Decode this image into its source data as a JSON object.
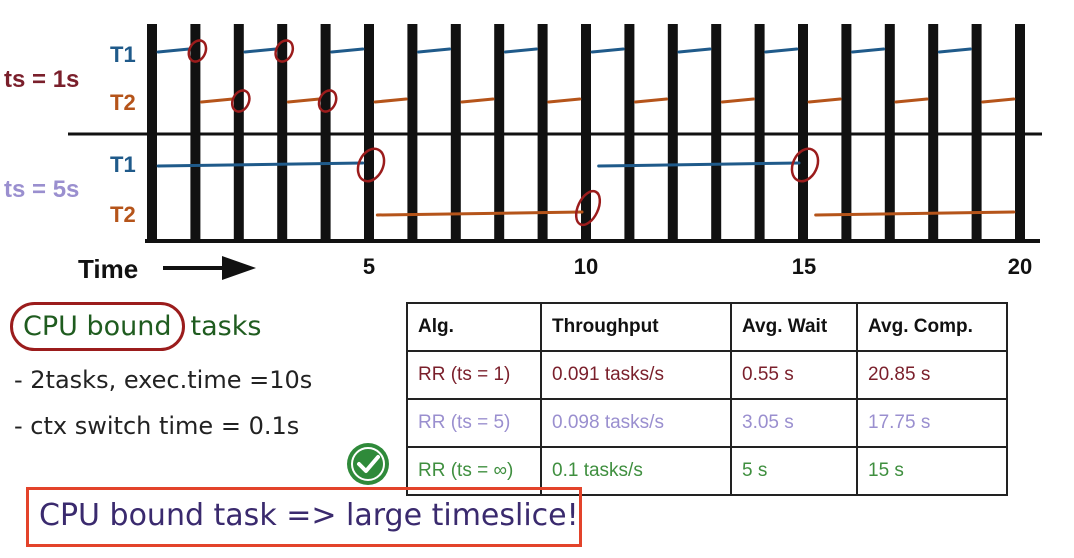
{
  "diagram": {
    "rows": [
      {
        "group": "ts = 1s",
        "task": "T1",
        "group_color": "#7a1f2b",
        "task_color": "#1f5a8a"
      },
      {
        "group": "ts = 1s",
        "task": "T2",
        "group_color": "#7a1f2b",
        "task_color": "#b5541a"
      },
      {
        "group": "ts = 5s",
        "task": "T1",
        "group_color": "#9a8fcf",
        "task_color": "#1f5a8a"
      },
      {
        "group": "ts = 5s",
        "task": "T2",
        "group_color": "#9a8fcf",
        "task_color": "#b5541a"
      }
    ],
    "group_labels": [
      "ts = 1s",
      "ts = 5s"
    ],
    "task_labels": [
      "T1",
      "T2",
      "T1",
      "T2"
    ],
    "axis_label": "Time",
    "ticks": [
      "5",
      "10",
      "15",
      "20"
    ],
    "colors": {
      "t1": "#1f5a8a",
      "t2": "#b5541a",
      "marker": "#9b1c1c",
      "bars": "#111111"
    }
  },
  "notes": {
    "title_circled": "CPU bound",
    "title_rest": "tasks",
    "line1": "- 2tasks, exec.time =10s",
    "line2": "- ctx switch time = 0.1s"
  },
  "table": {
    "headers": [
      "Alg.",
      "Throughput",
      "Avg. Wait",
      "Avg. Comp."
    ],
    "rows": [
      {
        "color": "#7a1f2b",
        "cells": [
          "RR (ts = 1)",
          "0.091 tasks/s",
          "0.55 s",
          "20.85 s"
        ]
      },
      {
        "color": "#9a8fcf",
        "cells": [
          "RR (ts = 5)",
          "0.098 tasks/s",
          "3.05 s",
          "17.75 s"
        ]
      },
      {
        "color": "#3f8f3f",
        "cells": [
          "RR (ts = ∞)",
          "0.1 tasks/s",
          "5 s",
          "15 s"
        ]
      }
    ]
  },
  "check_icon": "check-circle-icon",
  "conclusion": "CPU bound task => large timeslice!"
}
